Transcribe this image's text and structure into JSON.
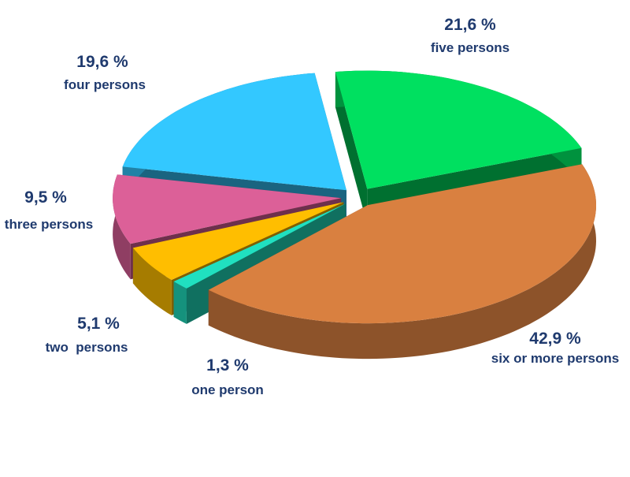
{
  "chart_data": {
    "type": "pie",
    "categories": [
      "five persons",
      "six or more persons",
      "one person",
      "two  persons",
      "three persons",
      "four persons"
    ],
    "values": [
      21.6,
      42.9,
      1.3,
      5.1,
      9.5,
      19.6
    ],
    "value_labels": [
      "21,6 %",
      "42,9 %",
      "1,3 %",
      "5,1 %",
      "9,5 %",
      "19,6 %"
    ],
    "colors": [
      "#00e060",
      "#d98040",
      "#20e0c0",
      "#ffbe00",
      "#dc6098",
      "#33c8ff"
    ]
  }
}
